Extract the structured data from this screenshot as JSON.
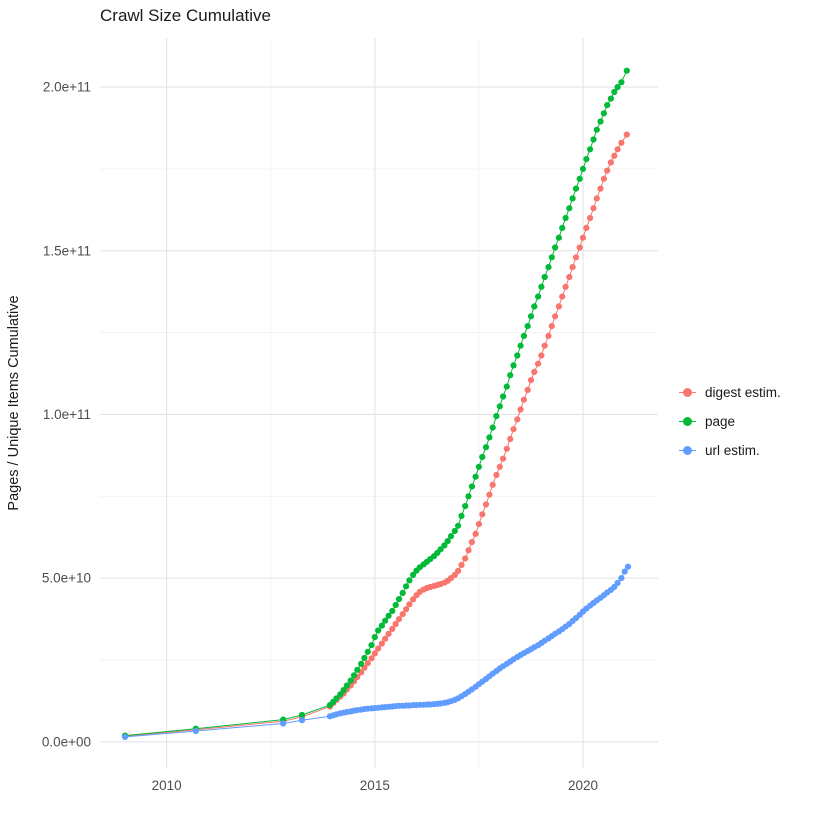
{
  "title": "Crawl Size Cumulative",
  "chart_data": {
    "type": "line",
    "title": "Crawl Size Cumulative",
    "xlabel": "",
    "ylabel": "Pages / Unique Items Cumulative",
    "y_scale_note": "point y-values stored in units of 1e9 (billions of pages/items)",
    "xlim": [
      2008.4,
      2021.8
    ],
    "ylim": [
      -8,
      215
    ],
    "grid": true,
    "legend_position": "right",
    "x_ticks": [
      {
        "v": 2010,
        "label": "2010"
      },
      {
        "v": 2015,
        "label": "2015"
      },
      {
        "v": 2020,
        "label": "2020"
      }
    ],
    "y_ticks": [
      {
        "v": 0,
        "label": "0.0e+00"
      },
      {
        "v": 50,
        "label": "5.0e+10"
      },
      {
        "v": 100,
        "label": "1.0e+11"
      },
      {
        "v": 150,
        "label": "1.5e+11"
      },
      {
        "v": 200,
        "label": "2.0e+11"
      }
    ],
    "x_minor": [
      2012.5,
      2017.5
    ],
    "y_minor": [
      25,
      75,
      125,
      175
    ],
    "series": [
      {
        "name": "digest estim.",
        "color": "#F8766D",
        "points": [
          [
            2009,
            1.7
          ],
          [
            2010.7,
            3.7
          ],
          [
            2012.8,
            6.3
          ],
          [
            2013.25,
            7.6
          ],
          [
            2013.92,
            10.8
          ],
          [
            2014,
            11.8
          ],
          [
            2014.08,
            12.8
          ],
          [
            2014.17,
            13.8
          ],
          [
            2014.25,
            14.8
          ],
          [
            2014.33,
            16
          ],
          [
            2014.42,
            17.2
          ],
          [
            2014.5,
            18.5
          ],
          [
            2014.58,
            19.8
          ],
          [
            2014.67,
            21.2
          ],
          [
            2014.75,
            22.6
          ],
          [
            2014.83,
            24
          ],
          [
            2014.92,
            25.5
          ],
          [
            2015,
            27
          ],
          [
            2015.08,
            28.5
          ],
          [
            2015.17,
            30
          ],
          [
            2015.25,
            31.5
          ],
          [
            2015.33,
            33
          ],
          [
            2015.42,
            34.5
          ],
          [
            2015.5,
            36
          ],
          [
            2015.58,
            37.5
          ],
          [
            2015.67,
            39
          ],
          [
            2015.75,
            40.5
          ],
          [
            2015.83,
            42
          ],
          [
            2015.92,
            43.5
          ],
          [
            2016,
            44.8
          ],
          [
            2016.08,
            45.8
          ],
          [
            2016.17,
            46.5
          ],
          [
            2016.25,
            47
          ],
          [
            2016.33,
            47.3
          ],
          [
            2016.42,
            47.6
          ],
          [
            2016.5,
            47.9
          ],
          [
            2016.58,
            48.2
          ],
          [
            2016.67,
            48.6
          ],
          [
            2016.75,
            49.2
          ],
          [
            2016.83,
            50
          ],
          [
            2016.92,
            51
          ],
          [
            2017,
            52.2
          ],
          [
            2017.08,
            54
          ],
          [
            2017.17,
            56
          ],
          [
            2017.25,
            58.5
          ],
          [
            2017.33,
            61
          ],
          [
            2017.42,
            63.5
          ],
          [
            2017.5,
            66.5
          ],
          [
            2017.58,
            69.5
          ],
          [
            2017.67,
            72.5
          ],
          [
            2017.75,
            75.5
          ],
          [
            2017.83,
            78.5
          ],
          [
            2017.92,
            81.5
          ],
          [
            2018,
            84
          ],
          [
            2018.08,
            86.5
          ],
          [
            2018.17,
            89.5
          ],
          [
            2018.25,
            92.5
          ],
          [
            2018.33,
            95.5
          ],
          [
            2018.42,
            98.5
          ],
          [
            2018.5,
            101.5
          ],
          [
            2018.58,
            104.5
          ],
          [
            2018.67,
            107.5
          ],
          [
            2018.75,
            110.5
          ],
          [
            2018.83,
            113
          ],
          [
            2018.92,
            115.5
          ],
          [
            2019,
            118
          ],
          [
            2019.08,
            121
          ],
          [
            2019.17,
            124
          ],
          [
            2019.25,
            127
          ],
          [
            2019.33,
            130
          ],
          [
            2019.42,
            133
          ],
          [
            2019.5,
            136
          ],
          [
            2019.58,
            139
          ],
          [
            2019.67,
            142
          ],
          [
            2019.75,
            145
          ],
          [
            2019.83,
            148
          ],
          [
            2019.92,
            151
          ],
          [
            2020,
            154
          ],
          [
            2020.08,
            157
          ],
          [
            2020.17,
            160
          ],
          [
            2020.25,
            163
          ],
          [
            2020.33,
            166
          ],
          [
            2020.42,
            169
          ],
          [
            2020.5,
            172
          ],
          [
            2020.58,
            174.5
          ],
          [
            2020.67,
            177
          ],
          [
            2020.75,
            179
          ],
          [
            2020.83,
            181
          ],
          [
            2020.92,
            183
          ],
          [
            2021.05,
            185.5
          ]
        ]
      },
      {
        "name": "page",
        "color": "#00BA38",
        "points": [
          [
            2009,
            1.9
          ],
          [
            2010.7,
            4
          ],
          [
            2012.8,
            6.8
          ],
          [
            2013.25,
            8.2
          ],
          [
            2013.92,
            11.2
          ],
          [
            2014,
            12.2
          ],
          [
            2014.08,
            13.3
          ],
          [
            2014.17,
            14.5
          ],
          [
            2014.25,
            15.8
          ],
          [
            2014.33,
            17.2
          ],
          [
            2014.42,
            18.7
          ],
          [
            2014.5,
            20.3
          ],
          [
            2014.58,
            22
          ],
          [
            2014.67,
            23.8
          ],
          [
            2014.75,
            25.6
          ],
          [
            2014.83,
            27.5
          ],
          [
            2014.92,
            29.5
          ],
          [
            2015,
            32
          ],
          [
            2015.08,
            34
          ],
          [
            2015.17,
            35.5
          ],
          [
            2015.25,
            37
          ],
          [
            2015.33,
            38.5
          ],
          [
            2015.42,
            40
          ],
          [
            2015.5,
            41.8
          ],
          [
            2015.58,
            43.6
          ],
          [
            2015.67,
            45.5
          ],
          [
            2015.75,
            47.5
          ],
          [
            2015.83,
            49.3
          ],
          [
            2015.92,
            51
          ],
          [
            2016,
            52.3
          ],
          [
            2016.08,
            53.3
          ],
          [
            2016.17,
            54.2
          ],
          [
            2016.25,
            55
          ],
          [
            2016.33,
            55.8
          ],
          [
            2016.42,
            56.7
          ],
          [
            2016.5,
            57.7
          ],
          [
            2016.58,
            58.8
          ],
          [
            2016.67,
            60
          ],
          [
            2016.75,
            61.3
          ],
          [
            2016.83,
            62.8
          ],
          [
            2016.92,
            64.4
          ],
          [
            2017,
            66
          ],
          [
            2017.08,
            69
          ],
          [
            2017.17,
            72
          ],
          [
            2017.25,
            75
          ],
          [
            2017.33,
            78
          ],
          [
            2017.42,
            81
          ],
          [
            2017.5,
            84
          ],
          [
            2017.58,
            87
          ],
          [
            2017.67,
            90
          ],
          [
            2017.75,
            93
          ],
          [
            2017.83,
            96
          ],
          [
            2017.92,
            99.5
          ],
          [
            2018,
            102.5
          ],
          [
            2018.08,
            105.5
          ],
          [
            2018.17,
            108.5
          ],
          [
            2018.25,
            112
          ],
          [
            2018.33,
            115
          ],
          [
            2018.42,
            118
          ],
          [
            2018.5,
            121
          ],
          [
            2018.58,
            124
          ],
          [
            2018.67,
            127
          ],
          [
            2018.75,
            130
          ],
          [
            2018.83,
            133
          ],
          [
            2018.92,
            136
          ],
          [
            2019,
            139
          ],
          [
            2019.08,
            142
          ],
          [
            2019.17,
            145
          ],
          [
            2019.25,
            148
          ],
          [
            2019.33,
            151
          ],
          [
            2019.42,
            154
          ],
          [
            2019.5,
            157
          ],
          [
            2019.58,
            160
          ],
          [
            2019.67,
            163
          ],
          [
            2019.75,
            166
          ],
          [
            2019.83,
            169
          ],
          [
            2019.92,
            172
          ],
          [
            2020,
            175
          ],
          [
            2020.08,
            178
          ],
          [
            2020.17,
            181
          ],
          [
            2020.25,
            184
          ],
          [
            2020.33,
            187
          ],
          [
            2020.42,
            189.5
          ],
          [
            2020.5,
            192
          ],
          [
            2020.58,
            194.5
          ],
          [
            2020.67,
            196.5
          ],
          [
            2020.75,
            198.5
          ],
          [
            2020.83,
            200
          ],
          [
            2020.92,
            201.5
          ],
          [
            2021.05,
            205
          ]
        ]
      },
      {
        "name": "url estim.",
        "color": "#619CFF",
        "points": [
          [
            2009,
            1.5
          ],
          [
            2010.7,
            3.3
          ],
          [
            2012.8,
            5.6
          ],
          [
            2013.25,
            6.6
          ],
          [
            2013.92,
            7.8
          ],
          [
            2014,
            8.1
          ],
          [
            2014.08,
            8.4
          ],
          [
            2014.17,
            8.7
          ],
          [
            2014.25,
            8.9
          ],
          [
            2014.33,
            9.1
          ],
          [
            2014.42,
            9.3
          ],
          [
            2014.5,
            9.5
          ],
          [
            2014.58,
            9.7
          ],
          [
            2014.67,
            9.8
          ],
          [
            2014.75,
            10
          ],
          [
            2014.83,
            10.1
          ],
          [
            2014.92,
            10.2
          ],
          [
            2015,
            10.3
          ],
          [
            2015.08,
            10.4
          ],
          [
            2015.17,
            10.5
          ],
          [
            2015.25,
            10.6
          ],
          [
            2015.33,
            10.7
          ],
          [
            2015.42,
            10.8
          ],
          [
            2015.5,
            10.9
          ],
          [
            2015.58,
            11
          ],
          [
            2015.67,
            11
          ],
          [
            2015.75,
            11.1
          ],
          [
            2015.83,
            11.1
          ],
          [
            2015.92,
            11.2
          ],
          [
            2016,
            11.2
          ],
          [
            2016.08,
            11.3
          ],
          [
            2016.17,
            11.3
          ],
          [
            2016.25,
            11.4
          ],
          [
            2016.33,
            11.4
          ],
          [
            2016.42,
            11.5
          ],
          [
            2016.5,
            11.6
          ],
          [
            2016.58,
            11.7
          ],
          [
            2016.67,
            11.9
          ],
          [
            2016.75,
            12.1
          ],
          [
            2016.83,
            12.4
          ],
          [
            2016.92,
            12.8
          ],
          [
            2017,
            13.3
          ],
          [
            2017.08,
            13.9
          ],
          [
            2017.17,
            14.6
          ],
          [
            2017.25,
            15.3
          ],
          [
            2017.33,
            16
          ],
          [
            2017.42,
            16.8
          ],
          [
            2017.5,
            17.6
          ],
          [
            2017.58,
            18.4
          ],
          [
            2017.67,
            19.2
          ],
          [
            2017.75,
            20
          ],
          [
            2017.83,
            20.8
          ],
          [
            2017.92,
            21.6
          ],
          [
            2018,
            22.4
          ],
          [
            2018.08,
            23.1
          ],
          [
            2018.17,
            23.8
          ],
          [
            2018.25,
            24.5
          ],
          [
            2018.33,
            25.2
          ],
          [
            2018.42,
            25.9
          ],
          [
            2018.5,
            26.5
          ],
          [
            2018.58,
            27.1
          ],
          [
            2018.67,
            27.7
          ],
          [
            2018.75,
            28.3
          ],
          [
            2018.83,
            28.9
          ],
          [
            2018.92,
            29.5
          ],
          [
            2019,
            30.2
          ],
          [
            2019.08,
            30.9
          ],
          [
            2019.17,
            31.6
          ],
          [
            2019.25,
            32.3
          ],
          [
            2019.33,
            33
          ],
          [
            2019.42,
            33.7
          ],
          [
            2019.5,
            34.4
          ],
          [
            2019.58,
            35.2
          ],
          [
            2019.67,
            36
          ],
          [
            2019.75,
            36.9
          ],
          [
            2019.83,
            37.8
          ],
          [
            2019.92,
            38.8
          ],
          [
            2020,
            39.8
          ],
          [
            2020.08,
            40.7
          ],
          [
            2020.17,
            41.6
          ],
          [
            2020.25,
            42.4
          ],
          [
            2020.33,
            43.2
          ],
          [
            2020.42,
            44
          ],
          [
            2020.5,
            44.8
          ],
          [
            2020.58,
            45.6
          ],
          [
            2020.67,
            46.4
          ],
          [
            2020.75,
            47.3
          ],
          [
            2020.83,
            48.5
          ],
          [
            2020.92,
            50
          ],
          [
            2021,
            52
          ],
          [
            2021.08,
            53.5
          ]
        ]
      }
    ]
  }
}
